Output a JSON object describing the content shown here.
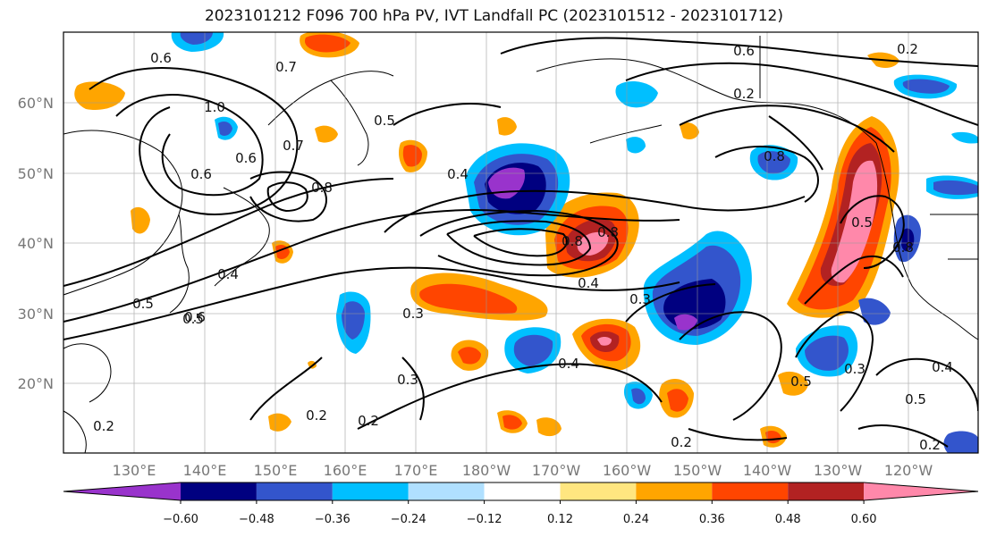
{
  "title": "2023101212 F096 700 hPa PV, IVT Landfall PC (2023101512 - 2023101712)",
  "map": {
    "lat_ticks": [
      "60°N",
      "50°N",
      "40°N",
      "30°N",
      "20°N"
    ],
    "lon_ticks": [
      "130°E",
      "140°E",
      "150°E",
      "160°E",
      "170°E",
      "180°W",
      "170°W",
      "160°W",
      "150°W",
      "140°W",
      "130°W",
      "120°W"
    ],
    "contour_labels": [
      "0.6",
      "0.7",
      "1.0",
      "0.6",
      "0.6",
      "0.7",
      "0.8",
      "0.5",
      "0.4",
      "0.8",
      "0.6",
      "0.2",
      "0.5",
      "0.4",
      "0.5",
      "0.6",
      "0.3",
      "0.4",
      "0.3",
      "0.2",
      "0.3",
      "0.4",
      "0.2",
      "0.2",
      "0.8",
      "0.5",
      "0.8",
      "0.4",
      "0.3",
      "0.5",
      "0.5",
      "0.2",
      "0.2",
      "0.8",
      "0.2"
    ]
  },
  "colorbar": {
    "colors": [
      "#9933cc",
      "#000080",
      "#3355cc",
      "#00bfff",
      "#b0e0ff",
      "#ffffff",
      "#ffe680",
      "#ffa500",
      "#ff4500",
      "#b22222",
      "#ff88aa"
    ],
    "ticks": [
      "−0.60",
      "−0.48",
      "−0.36",
      "−0.24",
      "−0.12",
      "0.12",
      "0.24",
      "0.36",
      "0.48",
      "0.60"
    ]
  }
}
